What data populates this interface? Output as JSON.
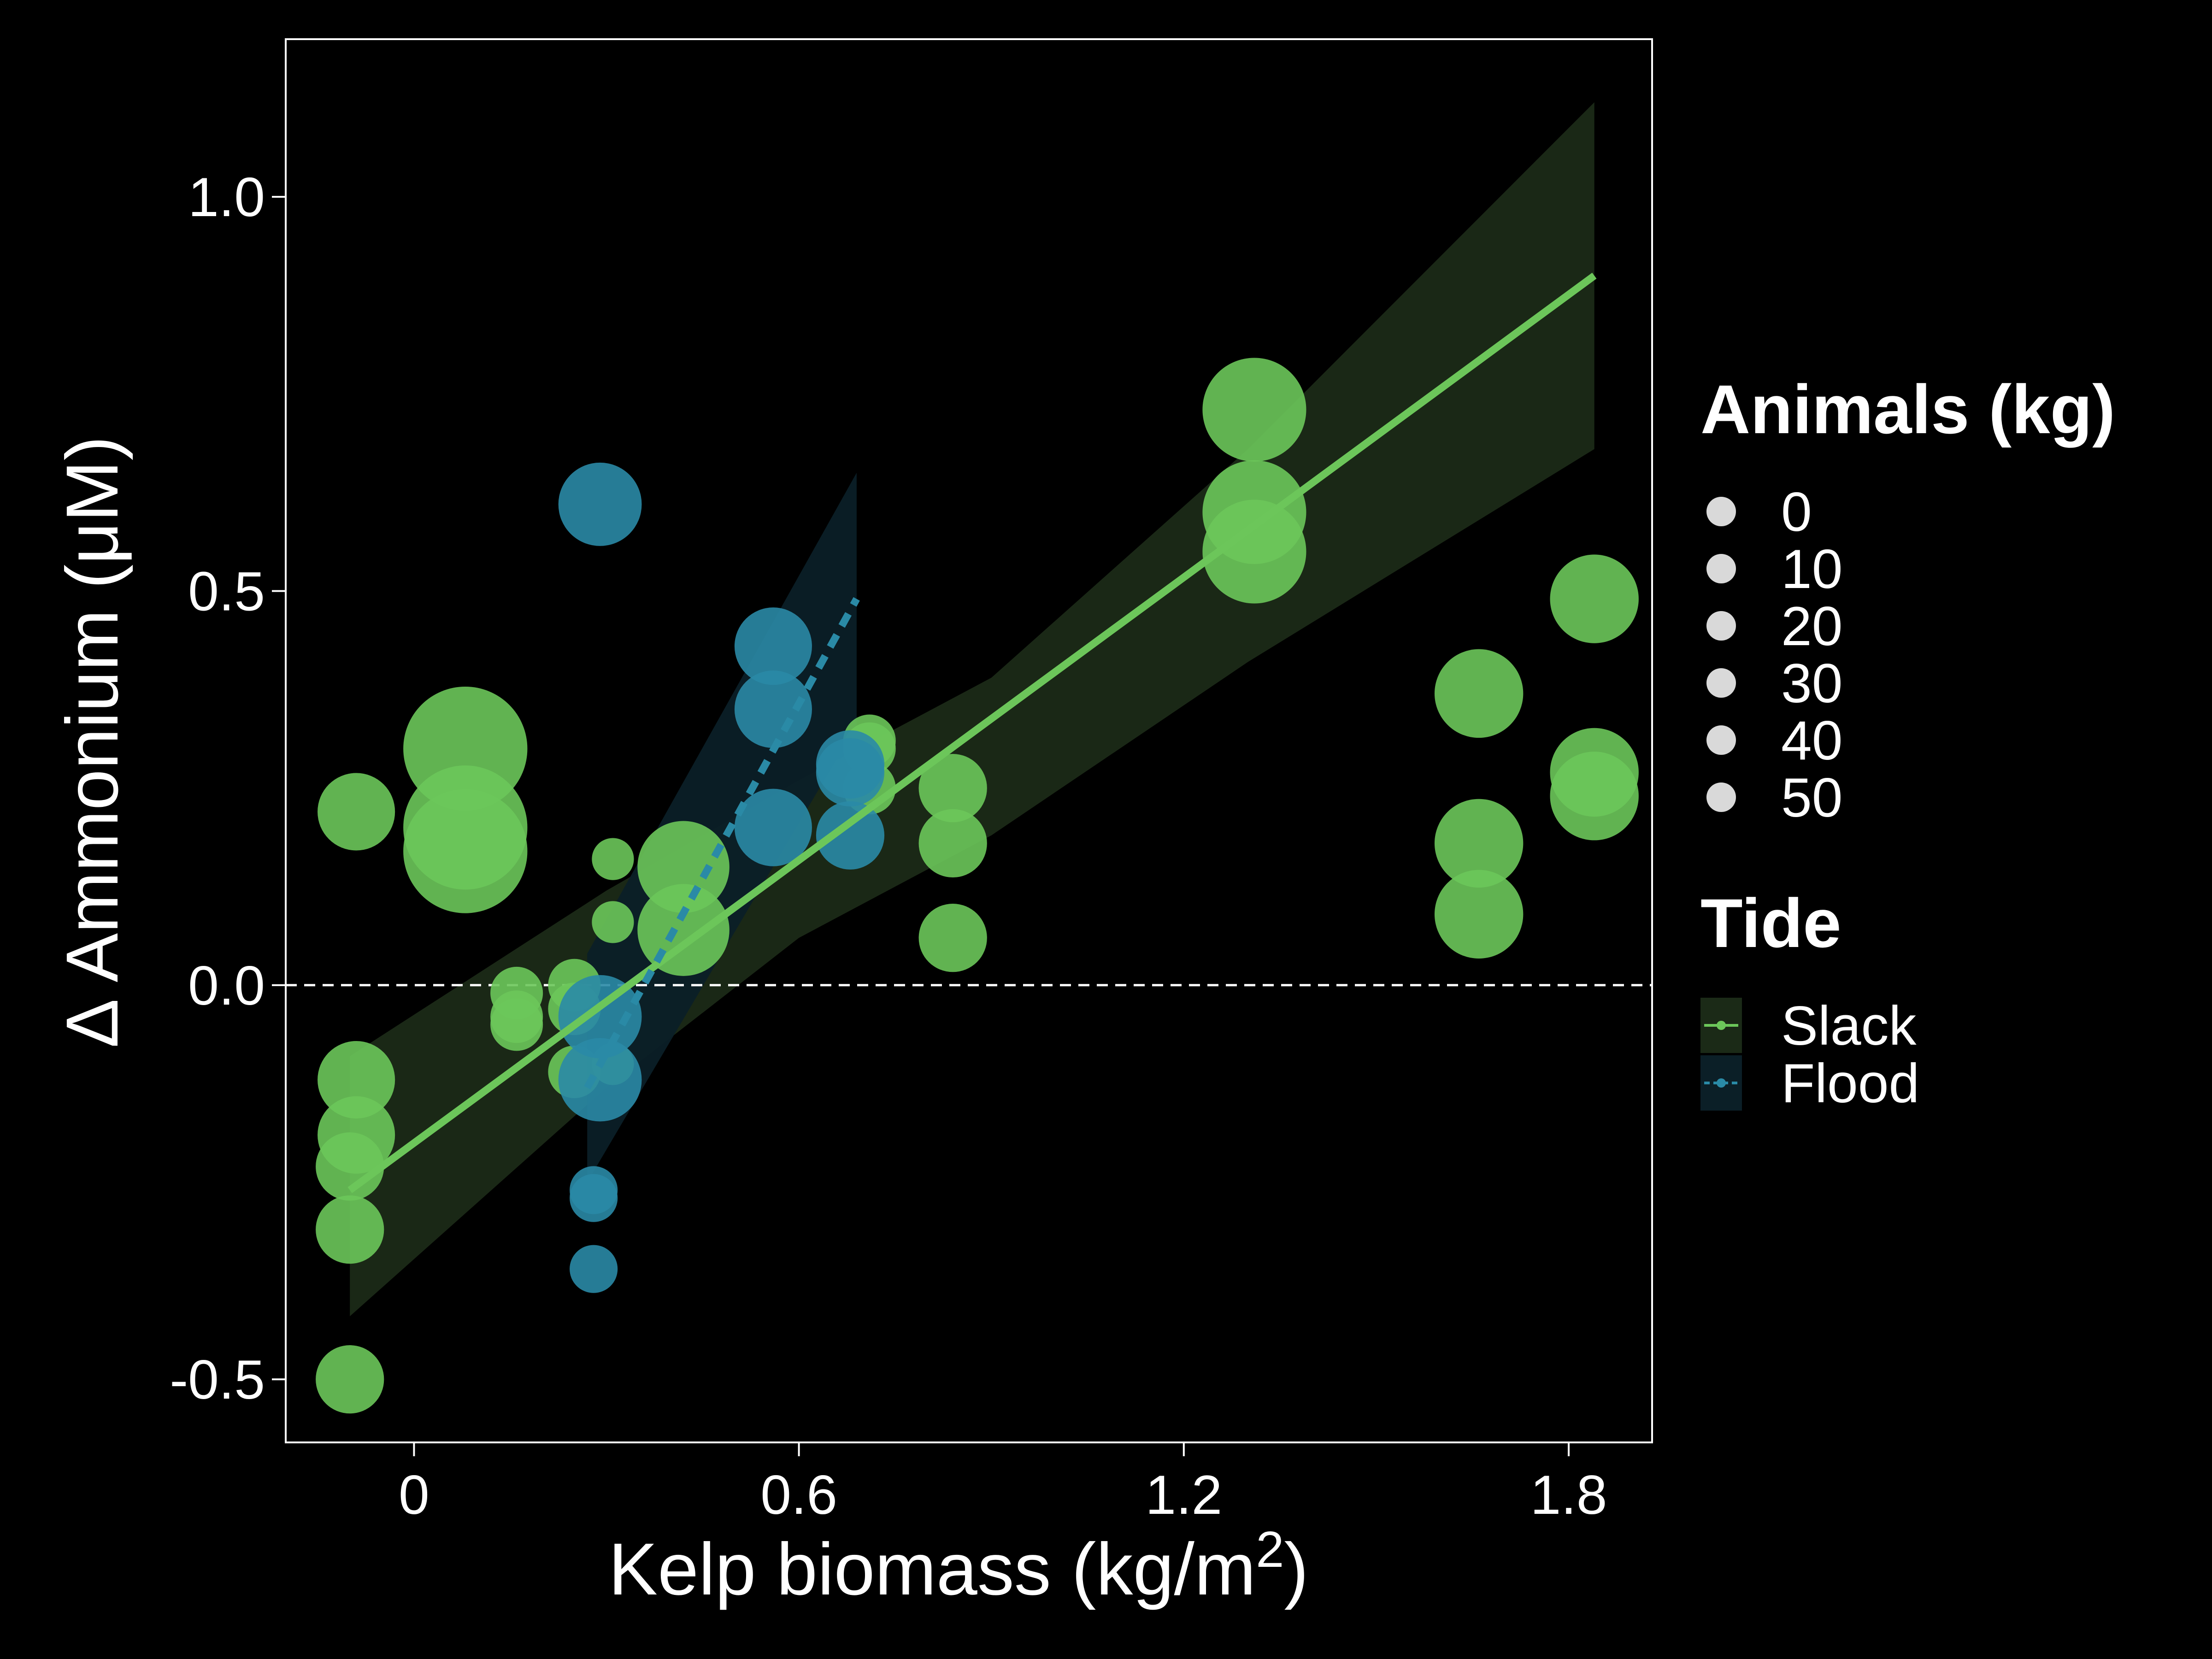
{
  "chart_data": {
    "type": "scatter",
    "title": "",
    "xlabel": "Kelp biomass (kg/m",
    "xlabel_superscript": "2",
    "xlabel_suffix": ")",
    "ylabel": "Δ Ammonium (μM)",
    "xlim": [
      -0.2,
      1.93
    ],
    "ylim": [
      -0.58,
      1.2
    ],
    "x_ticks": [
      0,
      0.6,
      1.2,
      1.8
    ],
    "x_tick_labels": [
      "0",
      "0.6",
      "1.2",
      "1.8"
    ],
    "y_ticks": [
      -0.5,
      0,
      0.5,
      1.0
    ],
    "y_tick_labels": [
      "-0.5",
      "0.0",
      "0.5",
      "1.0"
    ],
    "reference_line": {
      "y": 0,
      "style": "dashed",
      "color": "#ffffff"
    },
    "grid": false,
    "legend_placement": "right",
    "legends": {
      "size": {
        "title": "Animals (kg)",
        "labels": [
          "0",
          "10",
          "20",
          "30",
          "40",
          "50"
        ],
        "color": "#d9d9d9"
      },
      "tide": {
        "title": "Tide",
        "labels": [
          "Slack",
          "Flood"
        ]
      }
    },
    "series": [
      {
        "name": "Slack",
        "color": "#6cc65a",
        "fill": "#1b2a17",
        "line_style": "solid",
        "fit": {
          "x": [
            -0.1,
            1.84
          ],
          "y": [
            -0.26,
            0.9
          ]
        },
        "ribbon": {
          "x": [
            -0.1,
            0.3,
            0.6,
            0.9,
            1.3,
            1.84
          ],
          "upper": [
            -0.09,
            0.12,
            0.26,
            0.39,
            0.68,
            1.12
          ],
          "lower": [
            -0.42,
            -0.13,
            0.06,
            0.19,
            0.41,
            0.68
          ]
        },
        "points": [
          {
            "x": -0.09,
            "y": 0.22,
            "animals": 12
          },
          {
            "x": -0.09,
            "y": -0.12,
            "animals": 12
          },
          {
            "x": -0.09,
            "y": -0.19,
            "animals": 12
          },
          {
            "x": -0.1,
            "y": -0.23,
            "animals": 8
          },
          {
            "x": -0.1,
            "y": -0.31,
            "animals": 8
          },
          {
            "x": -0.1,
            "y": -0.5,
            "animals": 8
          },
          {
            "x": 0.08,
            "y": 0.3,
            "animals": 45
          },
          {
            "x": 0.08,
            "y": 0.2,
            "animals": 45
          },
          {
            "x": 0.08,
            "y": 0.17,
            "animals": 45
          },
          {
            "x": 0.16,
            "y": -0.01,
            "animals": 3
          },
          {
            "x": 0.16,
            "y": -0.04,
            "animals": 3
          },
          {
            "x": 0.16,
            "y": -0.05,
            "animals": 3
          },
          {
            "x": 0.25,
            "y": 0.0,
            "animals": 3
          },
          {
            "x": 0.25,
            "y": -0.03,
            "animals": 3
          },
          {
            "x": 0.25,
            "y": -0.11,
            "animals": 3
          },
          {
            "x": 0.31,
            "y": 0.16,
            "animals": 1
          },
          {
            "x": 0.31,
            "y": 0.08,
            "animals": 1
          },
          {
            "x": 0.31,
            "y": -0.1,
            "animals": 1
          },
          {
            "x": 0.42,
            "y": 0.15,
            "animals": 20
          },
          {
            "x": 0.42,
            "y": 0.07,
            "animals": 20
          },
          {
            "x": 0.71,
            "y": 0.31,
            "animals": 3
          },
          {
            "x": 0.71,
            "y": 0.3,
            "animals": 3
          },
          {
            "x": 0.71,
            "y": 0.25,
            "animals": 3
          },
          {
            "x": 0.84,
            "y": 0.25,
            "animals": 8
          },
          {
            "x": 0.84,
            "y": 0.18,
            "animals": 8
          },
          {
            "x": 0.84,
            "y": 0.06,
            "animals": 8
          },
          {
            "x": 1.31,
            "y": 0.73,
            "animals": 28
          },
          {
            "x": 1.31,
            "y": 0.6,
            "animals": 28
          },
          {
            "x": 1.31,
            "y": 0.55,
            "animals": 28
          },
          {
            "x": 1.66,
            "y": 0.37,
            "animals": 18
          },
          {
            "x": 1.66,
            "y": 0.18,
            "animals": 18
          },
          {
            "x": 1.66,
            "y": 0.09,
            "animals": 18
          },
          {
            "x": 1.84,
            "y": 0.49,
            "animals": 18
          },
          {
            "x": 1.84,
            "y": 0.27,
            "animals": 18
          },
          {
            "x": 1.84,
            "y": 0.24,
            "animals": 18
          }
        ]
      },
      {
        "name": "Flood",
        "color": "#2a8aa6",
        "fill": "#0b1f27",
        "line_style": "dashed",
        "fit": {
          "x": [
            0.27,
            0.69
          ],
          "y": [
            -0.13,
            0.49
          ]
        },
        "ribbon": {
          "x": [
            0.27,
            0.69
          ],
          "upper": [
            0.04,
            0.65
          ],
          "lower": [
            -0.25,
            0.33
          ]
        },
        "points": [
          {
            "x": 0.29,
            "y": 0.61,
            "animals": 15
          },
          {
            "x": 0.29,
            "y": -0.04,
            "animals": 15
          },
          {
            "x": 0.29,
            "y": -0.12,
            "animals": 15
          },
          {
            "x": 0.28,
            "y": -0.26,
            "animals": 2
          },
          {
            "x": 0.28,
            "y": -0.27,
            "animals": 2
          },
          {
            "x": 0.28,
            "y": -0.36,
            "animals": 2
          },
          {
            "x": 0.56,
            "y": 0.43,
            "animals": 12
          },
          {
            "x": 0.56,
            "y": 0.35,
            "animals": 12
          },
          {
            "x": 0.56,
            "y": 0.2,
            "animals": 12
          },
          {
            "x": 0.68,
            "y": 0.28,
            "animals": 8
          },
          {
            "x": 0.68,
            "y": 0.27,
            "animals": 8
          },
          {
            "x": 0.68,
            "y": 0.19,
            "animals": 8
          }
        ]
      }
    ]
  }
}
